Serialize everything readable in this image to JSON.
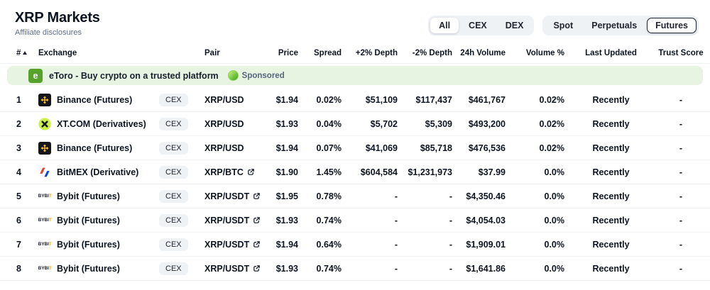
{
  "page": {
    "title": "XRP Markets",
    "subtitle": "Affiliate disclosures"
  },
  "filters": {
    "market_type": {
      "options": [
        "All",
        "CEX",
        "DEX"
      ],
      "selected": "All"
    },
    "derivative_type": {
      "options": [
        "Spot",
        "Perpetuals",
        "Futures"
      ],
      "selected": "Futures"
    }
  },
  "table": {
    "headers": {
      "rank": "#",
      "exchange": "Exchange",
      "pair": "Pair",
      "price": "Price",
      "spread": "Spread",
      "plus_depth": "+2% Depth",
      "minus_depth": "-2% Depth",
      "volume_24h": "24h Volume",
      "volume_pct": "Volume %",
      "last_updated": "Last Updated",
      "trust_score": "Trust Score"
    },
    "sort": {
      "column": "rank",
      "direction": "ascending",
      "icon": "sort-ascending-icon"
    },
    "sponsored_row": {
      "icon": "etoro-icon",
      "text": "eToro - Buy crypto on a trusted platform",
      "badge_icon": "sponsored-icon",
      "badge_label": "Sponsored",
      "background_color": "#e6f4e1"
    },
    "rows": [
      {
        "rank": "1",
        "icon": "binance-icon",
        "exchange": "Binance (Futures)",
        "type": "CEX",
        "pair": "XRP/USD",
        "external_link": false,
        "price": "$1.94",
        "spread": "0.02%",
        "plus_depth": "$51,109",
        "minus_depth": "$117,437",
        "volume_24h": "$461,767",
        "volume_pct": "0.02%",
        "last_updated": "Recently",
        "trust_score": "-"
      },
      {
        "rank": "2",
        "icon": "xt-icon",
        "exchange": "XT.COM (Derivatives)",
        "type": "CEX",
        "pair": "XRP/USD",
        "external_link": false,
        "price": "$1.93",
        "spread": "0.04%",
        "plus_depth": "$5,702",
        "minus_depth": "$5,309",
        "volume_24h": "$493,200",
        "volume_pct": "0.02%",
        "last_updated": "Recently",
        "trust_score": "-"
      },
      {
        "rank": "3",
        "icon": "binance-icon",
        "exchange": "Binance (Futures)",
        "type": "CEX",
        "pair": "XRP/USD",
        "external_link": false,
        "price": "$1.94",
        "spread": "0.07%",
        "plus_depth": "$41,069",
        "minus_depth": "$85,718",
        "volume_24h": "$476,536",
        "volume_pct": "0.02%",
        "last_updated": "Recently",
        "trust_score": "-"
      },
      {
        "rank": "4",
        "icon": "bitmex-icon",
        "exchange": "BitMEX (Derivative)",
        "type": "CEX",
        "pair": "XRP/BTC",
        "external_link": true,
        "price": "$1.90",
        "spread": "1.45%",
        "plus_depth": "$604,584",
        "minus_depth": "$1,231,973",
        "volume_24h": "$37.99",
        "volume_pct": "0.0%",
        "last_updated": "Recently",
        "trust_score": "-"
      },
      {
        "rank": "5",
        "icon": "bybit-icon",
        "exchange": "Bybit (Futures)",
        "type": "CEX",
        "pair": "XRP/USDT",
        "external_link": true,
        "price": "$1.95",
        "spread": "0.78%",
        "plus_depth": "-",
        "minus_depth": "-",
        "volume_24h": "$4,350.46",
        "volume_pct": "0.0%",
        "last_updated": "Recently",
        "trust_score": "-"
      },
      {
        "rank": "6",
        "icon": "bybit-icon",
        "exchange": "Bybit (Futures)",
        "type": "CEX",
        "pair": "XRP/USDT",
        "external_link": true,
        "price": "$1.93",
        "spread": "0.74%",
        "plus_depth": "-",
        "minus_depth": "-",
        "volume_24h": "$4,054.03",
        "volume_pct": "0.0%",
        "last_updated": "Recently",
        "trust_score": "-"
      },
      {
        "rank": "7",
        "icon": "bybit-icon",
        "exchange": "Bybit (Futures)",
        "type": "CEX",
        "pair": "XRP/USDT",
        "external_link": true,
        "price": "$1.94",
        "spread": "0.64%",
        "plus_depth": "-",
        "minus_depth": "-",
        "volume_24h": "$1,909.01",
        "volume_pct": "0.0%",
        "last_updated": "Recently",
        "trust_score": "-"
      },
      {
        "rank": "8",
        "icon": "bybit-icon",
        "exchange": "Bybit (Futures)",
        "type": "CEX",
        "pair": "XRP/USDT",
        "external_link": true,
        "price": "$1.93",
        "spread": "0.74%",
        "plus_depth": "-",
        "minus_depth": "-",
        "volume_24h": "$1,641.86",
        "volume_pct": "0.0%",
        "last_updated": "Recently",
        "trust_score": "-"
      }
    ]
  },
  "colors": {
    "text_primary": "#0d1421",
    "text_secondary": "#616e85",
    "row_divider": "#eff2f5",
    "badge_bg": "#eff2f5",
    "sponsored_bg": "#e6f4e1",
    "etoro_green": "#55a32a",
    "binance_yellow": "#f3ba2f",
    "xt_lime": "#c9f244",
    "bitmex_red": "#e4412d",
    "bitmex_blue": "#0b48d0",
    "bybit_yellow": "#f7a600"
  }
}
